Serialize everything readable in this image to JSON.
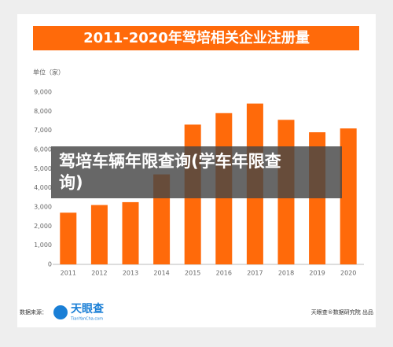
{
  "chart_data": {
    "type": "bar",
    "title": "2011-2020年驾培相关企业注册量",
    "unit_label": "单位（家）",
    "categories": [
      "2011",
      "2012",
      "2013",
      "2014",
      "2015",
      "2016",
      "2017",
      "2018",
      "2019",
      "2020"
    ],
    "values": [
      2700,
      3100,
      3250,
      4700,
      7300,
      7900,
      8400,
      7550,
      6900,
      7100
    ],
    "color": "#ff6a0a",
    "ylim": [
      0,
      9000
    ],
    "yticks": [
      0,
      {
        "value": 1000,
        "label": "1,000"
      },
      {
        "value": 2000,
        "label": "2,000"
      },
      {
        "value": 3000,
        "label": "3,000"
      },
      {
        "value": 4000,
        "label": "4,000"
      },
      {
        "value": 5000,
        "label": "5,000"
      },
      {
        "value": 6000,
        "label": "6,000"
      },
      {
        "value": 7000,
        "label": "7,000"
      },
      {
        "value": 8000,
        "label": "8,000"
      },
      {
        "value": 9000,
        "label": "9,000"
      }
    ],
    "grid": false
  },
  "overlay": {
    "text": "驾培车辆年限查询(学车年限查询)"
  },
  "footer": {
    "source_label": "数据来源：",
    "logo_name": "天眼查",
    "logo_url": "TianYanCha.com",
    "publisher": "天眼查®数据研究院 出品"
  }
}
